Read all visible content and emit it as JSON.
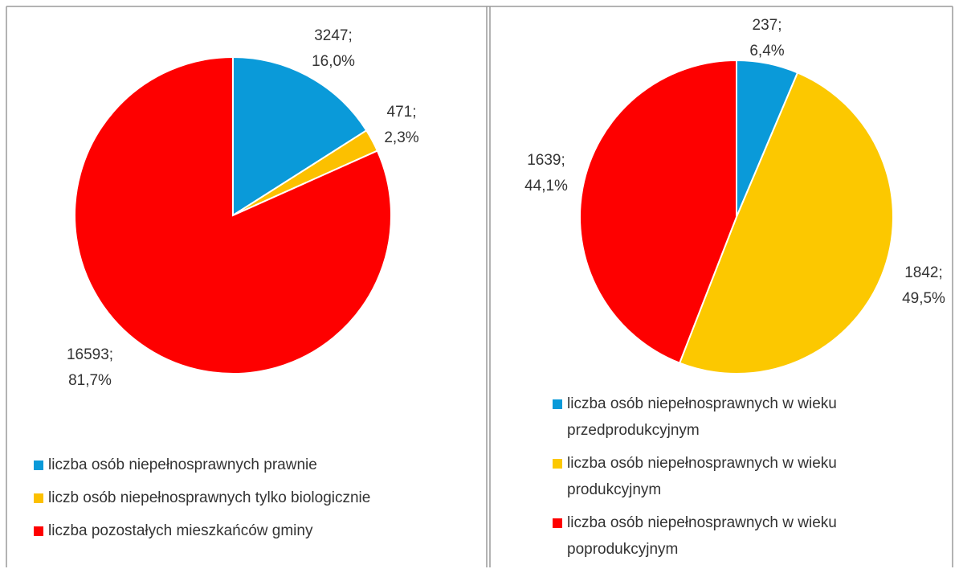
{
  "chart_data": [
    {
      "type": "pie",
      "categories": [
        "liczba osób niepełnosprawnych prawnie",
        "liczb osób niepełnosprawnych tylko biologicznie",
        "liczba pozostałych mieszkańców gminy"
      ],
      "values": [
        3247,
        471,
        16593
      ],
      "value_labels": [
        [
          "3247;",
          "16,0%"
        ],
        [
          "471;",
          "2,3%"
        ],
        [
          "16593;",
          "81,7%"
        ]
      ],
      "colors": [
        "#0a9ad9",
        "#fcc000",
        "#fe0000"
      ]
    },
    {
      "type": "pie",
      "categories": [
        "liczba osób niepełnosprawnych w wieku przedprodukcyjnym",
        "liczba osób niepełnosprawnych w wieku produkcyjnym",
        "liczba osób niepełnosprawnych w wieku poprodukcyjnym"
      ],
      "values": [
        237,
        1842,
        1639
      ],
      "value_labels": [
        [
          "237;",
          "6,4%"
        ],
        [
          "1842;",
          "49,5%"
        ],
        [
          "1639;",
          "44,1%"
        ]
      ],
      "colors": [
        "#0a9ad9",
        "#fcc800",
        "#fe0000"
      ]
    }
  ]
}
